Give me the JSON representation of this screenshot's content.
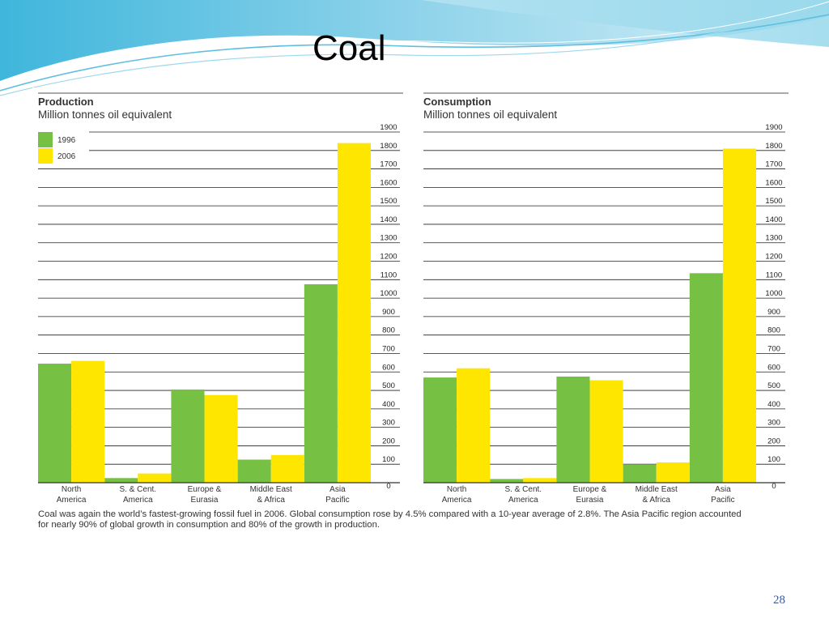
{
  "slide": {
    "title": "Coal",
    "page_number": "28",
    "caption_line1": "Coal was again the world’s fastest-growing fossil fuel in 2006. Global consumption rose by 4.5% compared with a 10-year average of 2.8%. The Asia Pacific region accounted",
    "caption_line2": "for nearly 90% of global growth in consumption and 80% of the growth in production."
  },
  "colors": {
    "series_1996": "#76c043",
    "series_2006": "#ffe600",
    "axis": "#333333",
    "grid": "#222222"
  },
  "chart_data": [
    {
      "type": "bar",
      "title": "Production",
      "subtitle": "Million tonnes oil equivalent",
      "categories": [
        [
          "North",
          "America"
        ],
        [
          "S. & Cent.",
          "America"
        ],
        [
          "Europe &",
          "Eurasia"
        ],
        [
          "Middle East",
          "& Africa"
        ],
        [
          "Asia",
          "Pacific"
        ]
      ],
      "series": [
        {
          "name": "1996",
          "values": [
            645,
            25,
            505,
            125,
            1075
          ]
        },
        {
          "name": "2006",
          "values": [
            660,
            50,
            475,
            150,
            1840
          ]
        }
      ],
      "ylim": [
        0,
        1900
      ],
      "yticks": [
        0,
        100,
        200,
        300,
        400,
        500,
        600,
        700,
        800,
        900,
        1000,
        1100,
        1200,
        1300,
        1400,
        1500,
        1600,
        1700,
        1800,
        1900
      ],
      "legend": "top-left",
      "grid": true
    },
    {
      "type": "bar",
      "title": "Consumption",
      "subtitle": "Million tonnes oil equivalent",
      "categories": [
        [
          "North",
          "America"
        ],
        [
          "S. & Cent.",
          "America"
        ],
        [
          "Europe &",
          "Eurasia"
        ],
        [
          "Middle East",
          "& Africa"
        ],
        [
          "Asia",
          "Pacific"
        ]
      ],
      "series": [
        {
          "name": "1996",
          "values": [
            570,
            20,
            575,
            100,
            1135
          ]
        },
        {
          "name": "2006",
          "values": [
            620,
            25,
            555,
            110,
            1810
          ]
        }
      ],
      "ylim": [
        0,
        1900
      ],
      "yticks": [
        0,
        100,
        200,
        300,
        400,
        500,
        600,
        700,
        800,
        900,
        1000,
        1100,
        1200,
        1300,
        1400,
        1500,
        1600,
        1700,
        1800,
        1900
      ],
      "grid": true
    }
  ]
}
